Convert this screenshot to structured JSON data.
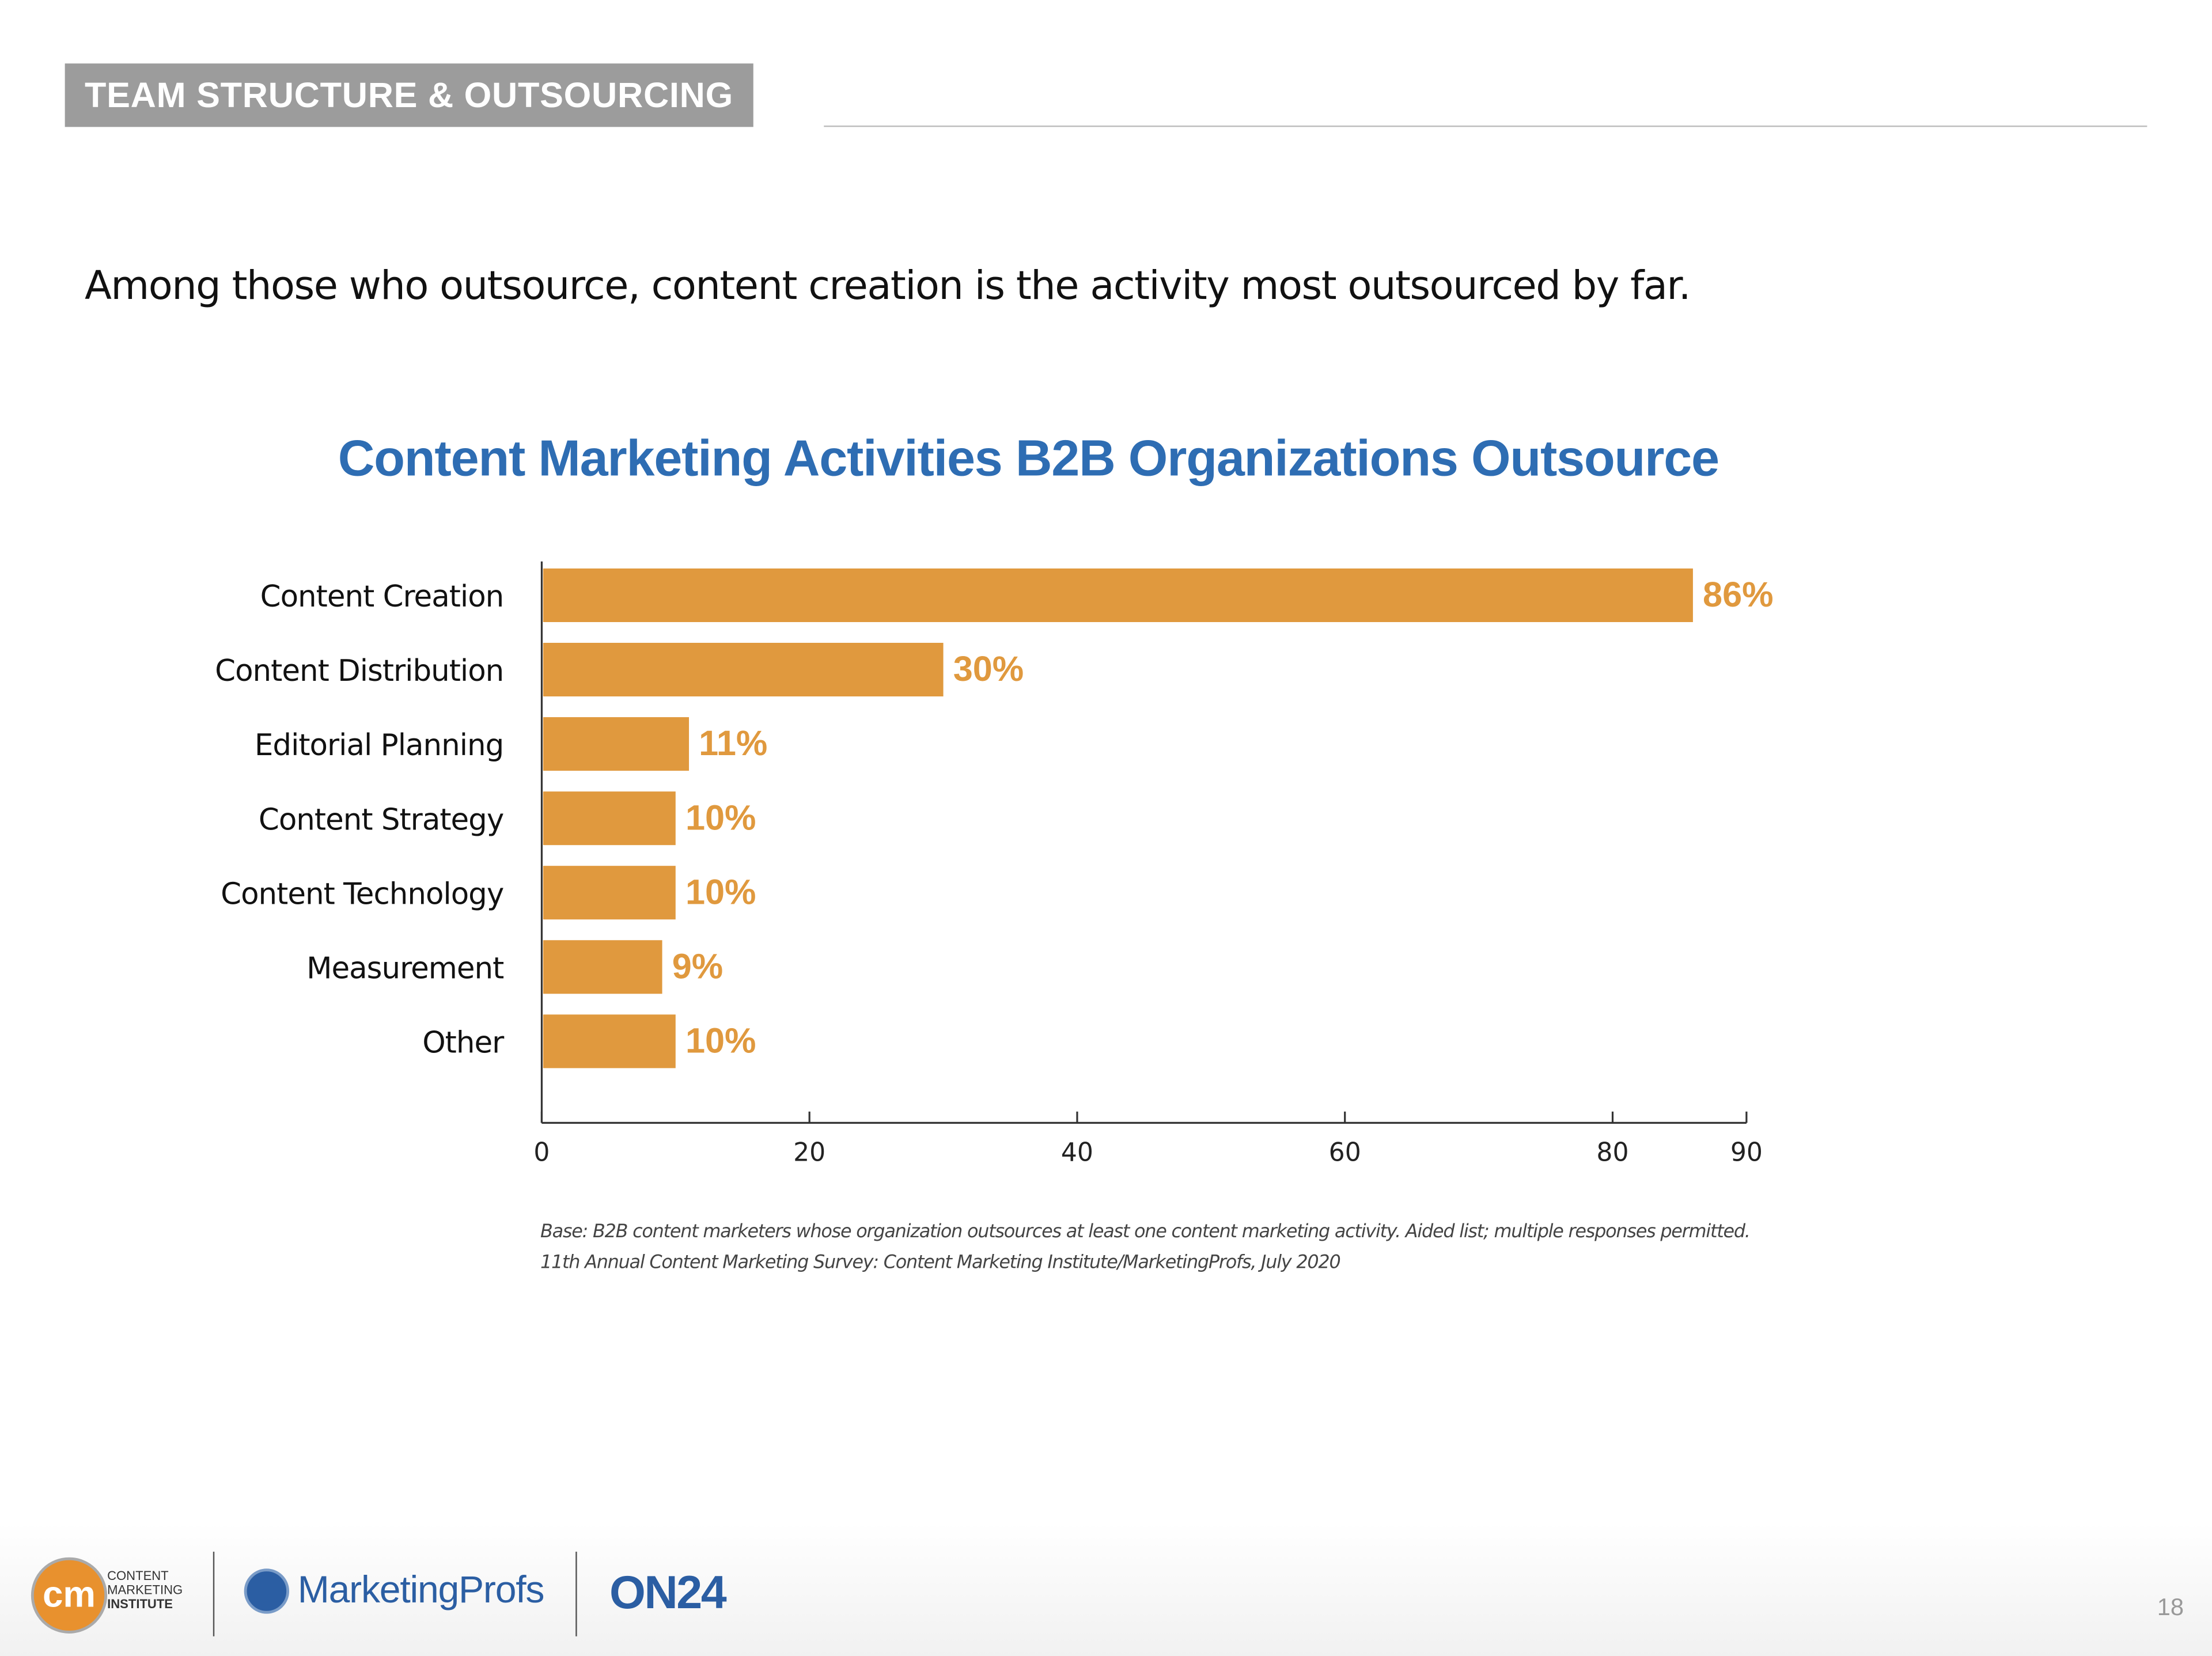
{
  "header": {
    "section_title": "TEAM STRUCTURE & OUTSOURCING"
  },
  "lead_text": "Among those who outsource, content creation is the activity most outsourced by far.",
  "chart_data": {
    "type": "bar",
    "orientation": "horizontal",
    "title": "Content Marketing Activities B2B Organizations Outsource",
    "categories": [
      "Content Creation",
      "Content Distribution",
      "Editorial Planning",
      "Content Strategy",
      "Content Technology",
      "Measurement",
      "Other"
    ],
    "values": [
      86,
      30,
      11,
      10,
      10,
      9,
      10
    ],
    "data_labels": [
      "86%",
      "30%",
      "11%",
      "10%",
      "10%",
      "9%",
      "10%"
    ],
    "xticks": [
      0,
      20,
      40,
      60,
      80,
      90
    ],
    "xlim": [
      0,
      90
    ],
    "grid": false,
    "bar_color": "#e0993e",
    "label_color": "#e0993e",
    "title_color": "#2e6db3"
  },
  "footnotes": [
    "Base: B2B content marketers whose organization outsources at least one content marketing activity. Aided list; multiple responses permitted.",
    "11th Annual Content Marketing Survey: Content Marketing Institute/MarketingProfs, July 2020"
  ],
  "footer": {
    "logos": {
      "cmi": [
        "CONTENT",
        "MARKETING",
        "INSTITUTE"
      ],
      "cmi_mark": "cm",
      "marketingprofs": "MarketingProfs",
      "on24": "ON24"
    },
    "page_number": "18"
  }
}
